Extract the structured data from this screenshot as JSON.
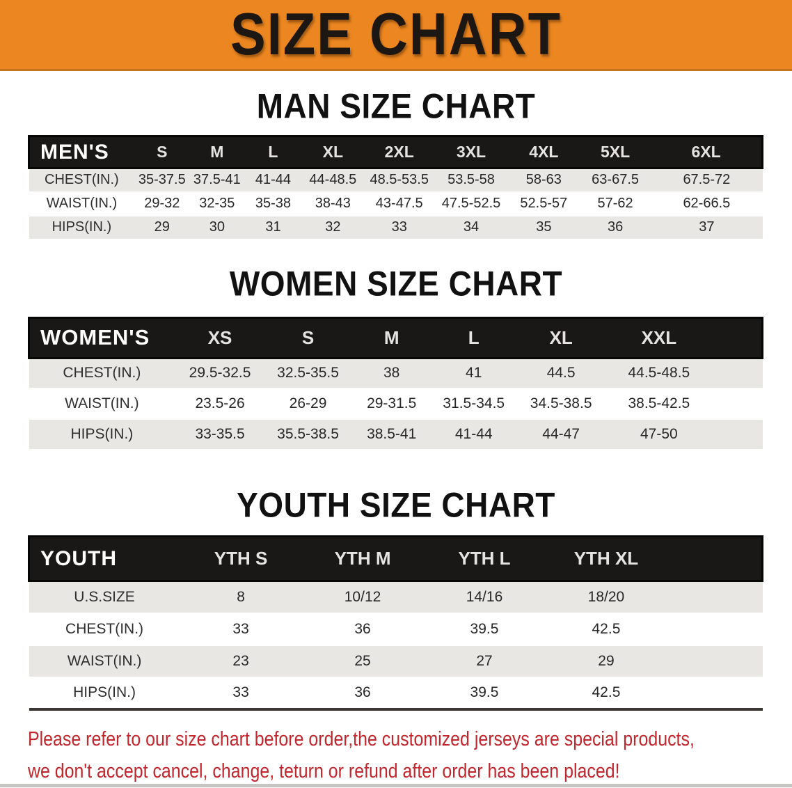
{
  "banner": {
    "title": "SIZE CHART"
  },
  "sections": {
    "men": {
      "title": "MAN SIZE CHART",
      "table": {
        "header": [
          "MEN'S",
          "S",
          "M",
          "L",
          "XL",
          "2XL",
          "3XL",
          "4XL",
          "5XL",
          "6XL"
        ],
        "rows": [
          [
            "CHEST(IN.)",
            "35-37.5",
            "37.5-41",
            "41-44",
            "44-48.5",
            "48.5-53.5",
            "53.5-58",
            "58-63",
            "63-67.5",
            "67.5-72"
          ],
          [
            "WAIST(IN.)",
            "29-32",
            "32-35",
            "35-38",
            "38-43",
            "43-47.5",
            "47.5-52.5",
            "52.5-57",
            "57-62",
            "62-66.5"
          ],
          [
            "HIPS(IN.)",
            "29",
            "30",
            "31",
            "32",
            "33",
            "34",
            "35",
            "36",
            "37"
          ]
        ]
      }
    },
    "women": {
      "title": "WOMEN SIZE CHART",
      "table": {
        "header": [
          "WOMEN'S",
          "XS",
          "S",
          "M",
          "L",
          "XL",
          "XXL"
        ],
        "rows": [
          [
            "CHEST(IN.)",
            "29.5-32.5",
            "32.5-35.5",
            "38",
            "41",
            "44.5",
            "44.5-48.5"
          ],
          [
            "WAIST(IN.)",
            "23.5-26",
            "26-29",
            "29-31.5",
            "31.5-34.5",
            "34.5-38.5",
            "38.5-42.5"
          ],
          [
            "HIPS(IN.)",
            "33-35.5",
            "35.5-38.5",
            "38.5-41",
            "41-44",
            "44-47",
            "47-50"
          ]
        ]
      }
    },
    "youth": {
      "title": "YOUTH SIZE CHART",
      "table": {
        "header": [
          "YOUTH",
          "YTH S",
          "YTH M",
          "YTH L",
          "YTH XL"
        ],
        "rows": [
          [
            "U.S.SIZE",
            "8",
            "10/12",
            "14/16",
            "18/20"
          ],
          [
            "CHEST(IN.)",
            "33",
            "36",
            "39.5",
            "42.5"
          ],
          [
            "WAIST(IN.)",
            "23",
            "25",
            "27",
            "29"
          ],
          [
            "HIPS(IN.)",
            "33",
            "36",
            "39.5",
            "42.5"
          ]
        ]
      }
    }
  },
  "disclaimer": {
    "line1": "Please refer to our size chart before order,the customized jerseys are special products,",
    "line2": "we don't accept cancel, change, teturn or refund after order has been placed!"
  },
  "colors": {
    "banner_orange": "#EB8620",
    "header_black": "#1A1817",
    "row_gray": "#E8E7E4",
    "disclaimer_red": "#C2262C"
  }
}
